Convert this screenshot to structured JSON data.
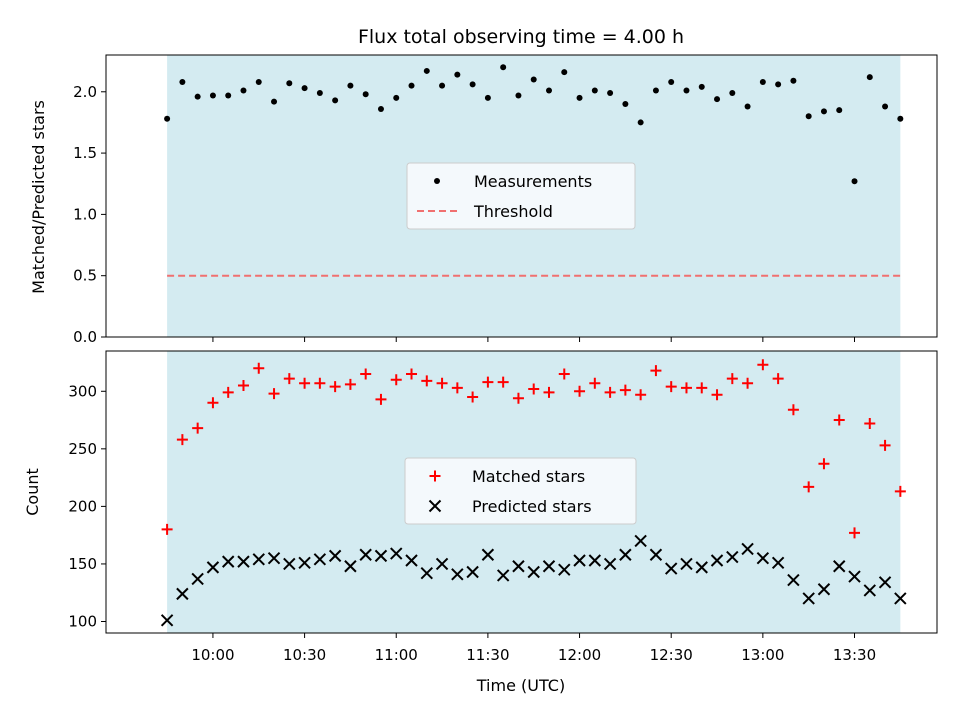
{
  "chart_data": [
    {
      "type": "scatter",
      "title": "Flux total observing time = 4.00 h",
      "xlabel": "",
      "ylabel": "Matched/Predicted stars",
      "ylim": [
        0,
        2.3
      ],
      "yticks": [
        "0.0",
        "0.5",
        "1.0",
        "1.5",
        "2.0"
      ],
      "shaded_band": {
        "x": [
          "09:45",
          "13:45"
        ],
        "color": "#d4ebf1"
      },
      "legend": {
        "position": "center",
        "entries": [
          "Measurements",
          "Threshold"
        ]
      },
      "threshold": {
        "name": "Threshold",
        "value": 0.5,
        "color": "#f07070",
        "style": "dashed"
      },
      "series": [
        {
          "name": "Measurements",
          "color": "#000000",
          "marker": "dot",
          "x": [
            "09:45",
            "09:50",
            "09:55",
            "10:00",
            "10:05",
            "10:10",
            "10:15",
            "10:20",
            "10:25",
            "10:30",
            "10:35",
            "10:40",
            "10:45",
            "10:50",
            "10:55",
            "11:00",
            "11:05",
            "11:10",
            "11:15",
            "11:20",
            "11:25",
            "11:30",
            "11:35",
            "11:40",
            "11:45",
            "11:50",
            "11:55",
            "12:00",
            "12:05",
            "12:10",
            "12:15",
            "12:20",
            "12:25",
            "12:30",
            "12:35",
            "12:40",
            "12:45",
            "12:50",
            "12:55",
            "13:00",
            "13:05",
            "13:10",
            "13:15",
            "13:20",
            "13:25",
            "13:30",
            "13:35",
            "13:40",
            "13:45"
          ],
          "values": [
            1.78,
            2.08,
            1.96,
            1.97,
            1.97,
            2.01,
            2.08,
            1.92,
            2.07,
            2.03,
            1.99,
            1.93,
            2.05,
            1.98,
            1.86,
            1.95,
            2.05,
            2.17,
            2.05,
            2.14,
            2.06,
            1.95,
            2.2,
            1.97,
            2.1,
            2.01,
            2.16,
            1.95,
            2.01,
            1.99,
            1.9,
            1.75,
            2.01,
            2.08,
            2.01,
            2.04,
            1.94,
            1.99,
            1.88,
            2.08,
            2.06,
            2.09,
            1.8,
            1.84,
            1.85,
            1.27,
            2.12,
            1.88,
            1.78
          ]
        }
      ]
    },
    {
      "type": "scatter",
      "title": "",
      "xlabel": "Time (UTC)",
      "ylabel": "Count",
      "ylim": [
        90,
        335
      ],
      "yticks": [
        "100",
        "150",
        "200",
        "250",
        "300"
      ],
      "xticks": [
        "10:00",
        "10:30",
        "11:00",
        "11:30",
        "12:00",
        "12:30",
        "13:00",
        "13:30"
      ],
      "shaded_band": {
        "x": [
          "09:45",
          "13:45"
        ],
        "color": "#d4ebf1"
      },
      "legend": {
        "position": "center",
        "entries": [
          "Matched stars",
          "Predicted stars"
        ]
      },
      "series": [
        {
          "name": "Matched stars",
          "color": "#ff0000",
          "marker": "plus",
          "x": [
            "09:45",
            "09:50",
            "09:55",
            "10:00",
            "10:05",
            "10:10",
            "10:15",
            "10:20",
            "10:25",
            "10:30",
            "10:35",
            "10:40",
            "10:45",
            "10:50",
            "10:55",
            "11:00",
            "11:05",
            "11:10",
            "11:15",
            "11:20",
            "11:25",
            "11:30",
            "11:35",
            "11:40",
            "11:45",
            "11:50",
            "11:55",
            "12:00",
            "12:05",
            "12:10",
            "12:15",
            "12:20",
            "12:25",
            "12:30",
            "12:35",
            "12:40",
            "12:45",
            "12:50",
            "12:55",
            "13:00",
            "13:05",
            "13:10",
            "13:15",
            "13:20",
            "13:25",
            "13:30",
            "13:35",
            "13:40",
            "13:45"
          ],
          "values": [
            180,
            258,
            268,
            290,
            299,
            305,
            320,
            298,
            311,
            307,
            307,
            304,
            306,
            315,
            293,
            310,
            315,
            309,
            307,
            303,
            295,
            308,
            308,
            294,
            302,
            299,
            315,
            300,
            307,
            299,
            301,
            297,
            318,
            304,
            303,
            303,
            297,
            311,
            307,
            323,
            311,
            284,
            217,
            237,
            275,
            177,
            272,
            253,
            213
          ]
        },
        {
          "name": "Predicted stars",
          "color": "#000000",
          "marker": "x",
          "x": [
            "09:45",
            "09:50",
            "09:55",
            "10:00",
            "10:05",
            "10:10",
            "10:15",
            "10:20",
            "10:25",
            "10:30",
            "10:35",
            "10:40",
            "10:45",
            "10:50",
            "10:55",
            "11:00",
            "11:05",
            "11:10",
            "11:15",
            "11:20",
            "11:25",
            "11:30",
            "11:35",
            "11:40",
            "11:45",
            "11:50",
            "11:55",
            "12:00",
            "12:05",
            "12:10",
            "12:15",
            "12:20",
            "12:25",
            "12:30",
            "12:35",
            "12:40",
            "12:45",
            "12:50",
            "12:55",
            "13:00",
            "13:05",
            "13:10",
            "13:15",
            "13:20",
            "13:25",
            "13:30",
            "13:35",
            "13:40",
            "13:45"
          ],
          "values": [
            101,
            124,
            137,
            147,
            152,
            152,
            154,
            155,
            150,
            151,
            154,
            157,
            148,
            158,
            157,
            159,
            153,
            142,
            150,
            141,
            143,
            158,
            140,
            148,
            143,
            148,
            145,
            153,
            153,
            150,
            158,
            170,
            158,
            146,
            150,
            147,
            153,
            156,
            163,
            155,
            151,
            136,
            120,
            128,
            148,
            139,
            127,
            134,
            120
          ]
        }
      ]
    }
  ]
}
